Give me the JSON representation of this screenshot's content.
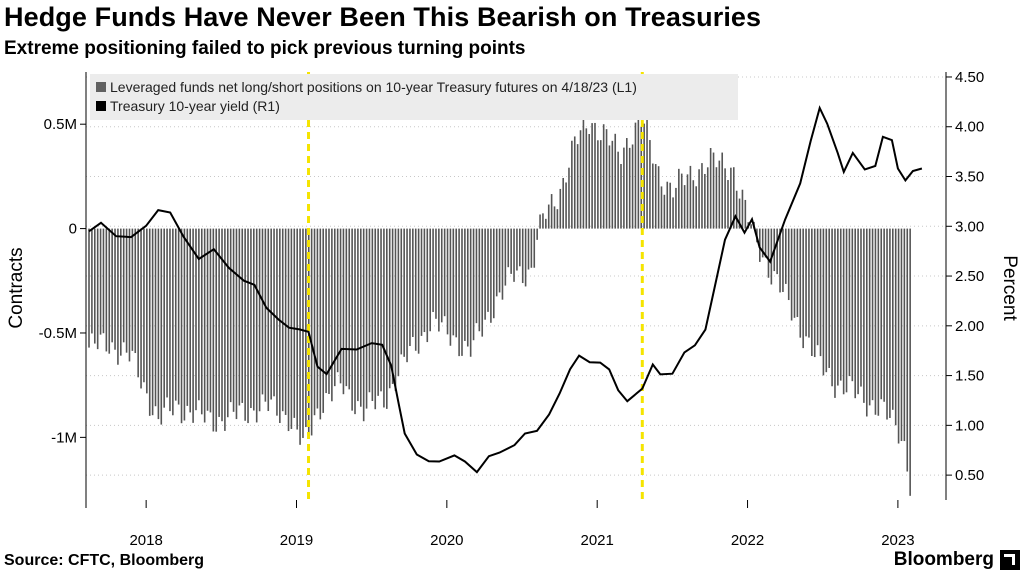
{
  "header": {
    "title": "Hedge Funds Have Never Been This Bearish on Treasuries",
    "subtitle": "Extreme positioning failed to pick previous turning points"
  },
  "footer": {
    "source": "Source: CFTC, Bloomberg",
    "brand": "Bloomberg"
  },
  "chart_data": {
    "type": "bar",
    "xlabel": "",
    "ylabel_left": "Contracts",
    "ylabel_right": "Percent",
    "ylim_left": [
      -1300000,
      750000
    ],
    "ylim_right": [
      0.25,
      4.55
    ],
    "x_range": [
      2017.6,
      2023.32
    ],
    "grid": true,
    "grid_style": "dotted-horizontal",
    "x_ticks": [
      {
        "label": "2018",
        "value": 2018.0
      },
      {
        "label": "2019",
        "value": 2019.0
      },
      {
        "label": "2020",
        "value": 2020.0
      },
      {
        "label": "2021",
        "value": 2021.0
      },
      {
        "label": "2022",
        "value": 2022.0
      },
      {
        "label": "2023",
        "value": 2023.0
      }
    ],
    "y_ticks_left": [
      {
        "label": "0.5M",
        "value": 500000
      },
      {
        "label": "0",
        "value": 0
      },
      {
        "label": "-0.5M",
        "value": -500000
      },
      {
        "label": "-1M",
        "value": -1000000
      }
    ],
    "y_ticks_right": [
      {
        "label": "4.50",
        "value": 4.5
      },
      {
        "label": "4.00",
        "value": 4.0
      },
      {
        "label": "3.50",
        "value": 3.5
      },
      {
        "label": "3.00",
        "value": 3.0
      },
      {
        "label": "2.50",
        "value": 2.5
      },
      {
        "label": "2.00",
        "value": 2.0
      },
      {
        "label": "1.50",
        "value": 1.5
      },
      {
        "label": "1.00",
        "value": 1.0
      },
      {
        "label": "0.50",
        "value": 0.5
      }
    ],
    "legend": {
      "placement": "top-left",
      "entries": [
        {
          "label": "Leveraged funds net long/short positions on 10-year Treasury futures on 4/18/23 (L1)",
          "color": "#606060"
        },
        {
          "label": "Treasury 10-year yield (R1)",
          "color": "#000000"
        }
      ]
    },
    "annotations": {
      "vertical_lines": [
        2019.08,
        2021.3
      ],
      "vertical_line_color": "#f5e400"
    },
    "series": [
      {
        "legend_index": 0,
        "kind": "bar",
        "axis": "left",
        "color": "#555555",
        "anchors": [
          [
            2017.62,
            -0.57
          ],
          [
            2017.75,
            -0.55
          ],
          [
            2017.9,
            -0.62
          ],
          [
            2018.0,
            -0.78
          ],
          [
            2018.08,
            -0.92
          ],
          [
            2018.2,
            -0.85
          ],
          [
            2018.35,
            -0.9
          ],
          [
            2018.5,
            -0.92
          ],
          [
            2018.65,
            -0.88
          ],
          [
            2018.8,
            -0.85
          ],
          [
            2018.95,
            -0.9
          ],
          [
            2019.05,
            -1.05
          ],
          [
            2019.15,
            -0.85
          ],
          [
            2019.3,
            -0.75
          ],
          [
            2019.45,
            -0.88
          ],
          [
            2019.6,
            -0.8
          ],
          [
            2019.75,
            -0.6
          ],
          [
            2019.9,
            -0.45
          ],
          [
            2020.05,
            -0.52
          ],
          [
            2020.15,
            -0.6
          ],
          [
            2020.3,
            -0.38
          ],
          [
            2020.45,
            -0.22
          ],
          [
            2020.57,
            -0.2
          ],
          [
            2020.6,
            -0.05
          ],
          [
            2020.65,
            0.06
          ],
          [
            2020.75,
            0.18
          ],
          [
            2020.85,
            0.4
          ],
          [
            2020.95,
            0.52
          ],
          [
            2021.05,
            0.45
          ],
          [
            2021.15,
            0.35
          ],
          [
            2021.22,
            0.45
          ],
          [
            2021.3,
            0.52
          ],
          [
            2021.4,
            0.28
          ],
          [
            2021.5,
            0.18
          ],
          [
            2021.6,
            0.25
          ],
          [
            2021.75,
            0.32
          ],
          [
            2021.9,
            0.3
          ],
          [
            2021.98,
            0.1
          ],
          [
            2022.05,
            -0.05
          ],
          [
            2022.15,
            -0.2
          ],
          [
            2022.3,
            -0.4
          ],
          [
            2022.45,
            -0.62
          ],
          [
            2022.6,
            -0.75
          ],
          [
            2022.75,
            -0.8
          ],
          [
            2022.9,
            -0.88
          ],
          [
            2023.0,
            -0.95
          ],
          [
            2023.05,
            -1.05
          ],
          [
            2023.09,
            -1.28
          ]
        ]
      },
      {
        "legend_index": 1,
        "kind": "line",
        "axis": "right",
        "color": "#000000",
        "points": [
          [
            2017.62,
            2.95
          ],
          [
            2017.7,
            3.02
          ],
          [
            2017.8,
            2.92
          ],
          [
            2017.9,
            2.88
          ],
          [
            2018.0,
            3.0
          ],
          [
            2018.08,
            3.18
          ],
          [
            2018.16,
            3.12
          ],
          [
            2018.25,
            2.9
          ],
          [
            2018.35,
            2.68
          ],
          [
            2018.45,
            2.75
          ],
          [
            2018.55,
            2.6
          ],
          [
            2018.65,
            2.45
          ],
          [
            2018.72,
            2.4
          ],
          [
            2018.8,
            2.2
          ],
          [
            2018.88,
            2.05
          ],
          [
            2018.95,
            1.98
          ],
          [
            2019.02,
            1.98
          ],
          [
            2019.08,
            1.92
          ],
          [
            2019.14,
            1.6
          ],
          [
            2019.2,
            1.52
          ],
          [
            2019.3,
            1.75
          ],
          [
            2019.4,
            1.78
          ],
          [
            2019.5,
            1.82
          ],
          [
            2019.57,
            1.8
          ],
          [
            2019.63,
            1.62
          ],
          [
            2019.68,
            1.2
          ],
          [
            2019.72,
            0.92
          ],
          [
            2019.8,
            0.72
          ],
          [
            2019.88,
            0.62
          ],
          [
            2019.95,
            0.65
          ],
          [
            2020.05,
            0.7
          ],
          [
            2020.12,
            0.62
          ],
          [
            2020.2,
            0.55
          ],
          [
            2020.28,
            0.68
          ],
          [
            2020.35,
            0.72
          ],
          [
            2020.45,
            0.82
          ],
          [
            2020.52,
            0.9
          ],
          [
            2020.6,
            0.95
          ],
          [
            2020.68,
            1.12
          ],
          [
            2020.75,
            1.3
          ],
          [
            2020.82,
            1.58
          ],
          [
            2020.88,
            1.7
          ],
          [
            2020.95,
            1.62
          ],
          [
            2021.02,
            1.65
          ],
          [
            2021.08,
            1.55
          ],
          [
            2021.14,
            1.35
          ],
          [
            2021.2,
            1.26
          ],
          [
            2021.3,
            1.35
          ],
          [
            2021.37,
            1.62
          ],
          [
            2021.42,
            1.52
          ],
          [
            2021.5,
            1.5
          ],
          [
            2021.58,
            1.75
          ],
          [
            2021.65,
            1.8
          ],
          [
            2021.72,
            1.95
          ],
          [
            2021.78,
            2.4
          ],
          [
            2021.85,
            2.85
          ],
          [
            2021.92,
            3.1
          ],
          [
            2021.98,
            2.95
          ],
          [
            2022.03,
            3.05
          ],
          [
            2022.08,
            2.8
          ],
          [
            2022.15,
            2.65
          ],
          [
            2022.25,
            3.05
          ],
          [
            2022.35,
            3.45
          ],
          [
            2022.42,
            3.85
          ],
          [
            2022.48,
            4.18
          ],
          [
            2022.53,
            4.05
          ],
          [
            2022.6,
            3.72
          ],
          [
            2022.64,
            3.55
          ],
          [
            2022.7,
            3.75
          ],
          [
            2022.78,
            3.55
          ],
          [
            2022.85,
            3.62
          ],
          [
            2022.9,
            3.9
          ],
          [
            2022.96,
            3.85
          ],
          [
            2023.0,
            3.6
          ],
          [
            2023.05,
            3.45
          ],
          [
            2023.1,
            3.55
          ],
          [
            2023.16,
            3.58
          ]
        ]
      }
    ]
  }
}
